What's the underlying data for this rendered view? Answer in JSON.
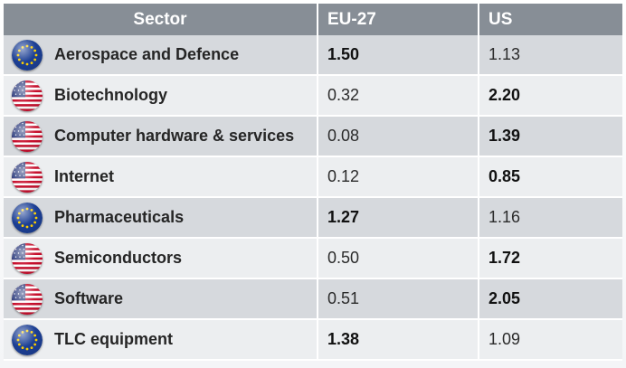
{
  "table": {
    "headers": [
      "Sector",
      "EU-27",
      "US"
    ],
    "rows": [
      {
        "sector": "Aerospace and Defence",
        "flag": "eu-flag-icon",
        "eu": "1.50",
        "us": "1.13",
        "bold": "eu"
      },
      {
        "sector": "Biotechnology",
        "flag": "us-flag-icon",
        "eu": "0.32",
        "us": "2.20",
        "bold": "us"
      },
      {
        "sector": "Computer hardware & services",
        "flag": "us-flag-icon",
        "eu": "0.08",
        "us": "1.39",
        "bold": "us"
      },
      {
        "sector": "Internet",
        "flag": "us-flag-icon",
        "eu": "0.12",
        "us": "0.85",
        "bold": "us"
      },
      {
        "sector": "Pharmaceuticals",
        "flag": "eu-flag-icon",
        "eu": "1.27",
        "us": "1.16",
        "bold": "eu"
      },
      {
        "sector": "Semiconductors",
        "flag": "us-flag-icon",
        "eu": "0.50",
        "us": "1.72",
        "bold": "us"
      },
      {
        "sector": "Software",
        "flag": "us-flag-icon",
        "eu": "0.51",
        "us": "2.05",
        "bold": "us"
      },
      {
        "sector": "TLC equipment",
        "flag": "eu-flag-icon",
        "eu": "1.38",
        "us": "1.09",
        "bold": "eu"
      }
    ]
  },
  "colors": {
    "header_bg": "#878e96",
    "row_odd": "#d6d9dd",
    "row_even": "#eceef0",
    "eu_blue": "#1c3f94",
    "eu_star": "#ffd200",
    "us_red": "#c8102e",
    "us_blue": "#2a3a7c"
  }
}
